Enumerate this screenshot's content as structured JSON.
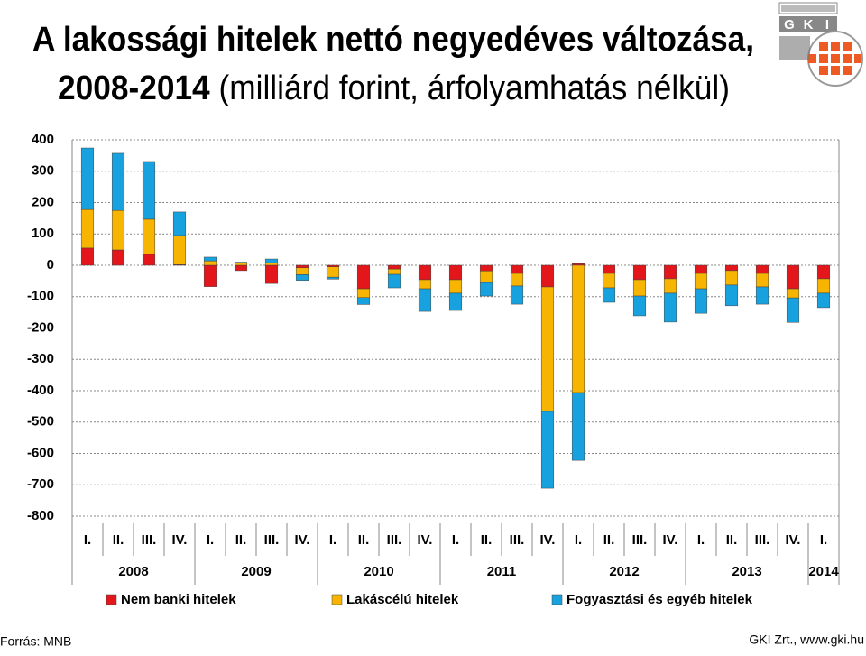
{
  "chart_data": {
    "type": "bar",
    "stacked": true,
    "title": "A lakossági hitelek nettó negyedéves változása,",
    "subtitle": [
      "2008-2014",
      "(milliárd forint, árfolyamhatás nélkül)"
    ],
    "categories": [
      "I.",
      "II.",
      "III.",
      "IV.",
      "I.",
      "II.",
      "III.",
      "IV.",
      "I.",
      "II.",
      "III.",
      "IV.",
      "I.",
      "II.",
      "III.",
      "IV.",
      "I.",
      "II.",
      "III.",
      "IV.",
      "I.",
      "II.",
      "III.",
      "IV.",
      "I."
    ],
    "years": [
      "2008",
      "2009",
      "2010",
      "2011",
      "2012",
      "2013",
      "2014"
    ],
    "series": [
      {
        "name": "Nem banki hitelek",
        "color": "#e3161b",
        "values": [
          55,
          49,
          35,
          2,
          -68,
          -17,
          -58,
          -8,
          -5,
          -75,
          -12,
          -46,
          -46,
          -18,
          -26,
          -69,
          5,
          -26,
          -46,
          -43,
          -26,
          -17,
          -26,
          -75,
          -43
        ]
      },
      {
        "name": "Lakáscélú hitelek",
        "color": "#f7b401",
        "values": [
          123,
          126,
          112,
          93,
          14,
          8,
          8,
          -22,
          -33,
          -28,
          -17,
          -29,
          -43,
          -37,
          -40,
          -397,
          -406,
          -46,
          -52,
          -46,
          -49,
          -46,
          -43,
          -29,
          -46
        ]
      },
      {
        "name": "Fogyasztási és egyéb hitelek",
        "color": "#17a2df",
        "values": [
          196,
          182,
          184,
          75,
          12,
          2,
          12,
          -18,
          -6,
          -22,
          -43,
          -72,
          -55,
          -43,
          -58,
          -245,
          -216,
          -46,
          -63,
          -92,
          -78,
          -66,
          -55,
          -78,
          -46
        ]
      }
    ],
    "ylim": [
      -800,
      400
    ],
    "yticks": [
      400,
      300,
      200,
      100,
      0,
      -100,
      -200,
      -300,
      -400,
      -500,
      -600,
      -700,
      -800
    ],
    "grid": true
  },
  "logo_text": [
    "G",
    "K",
    "I"
  ],
  "source": "Forrás: MNB",
  "credit": "GKI Zrt., www.gki.hu"
}
